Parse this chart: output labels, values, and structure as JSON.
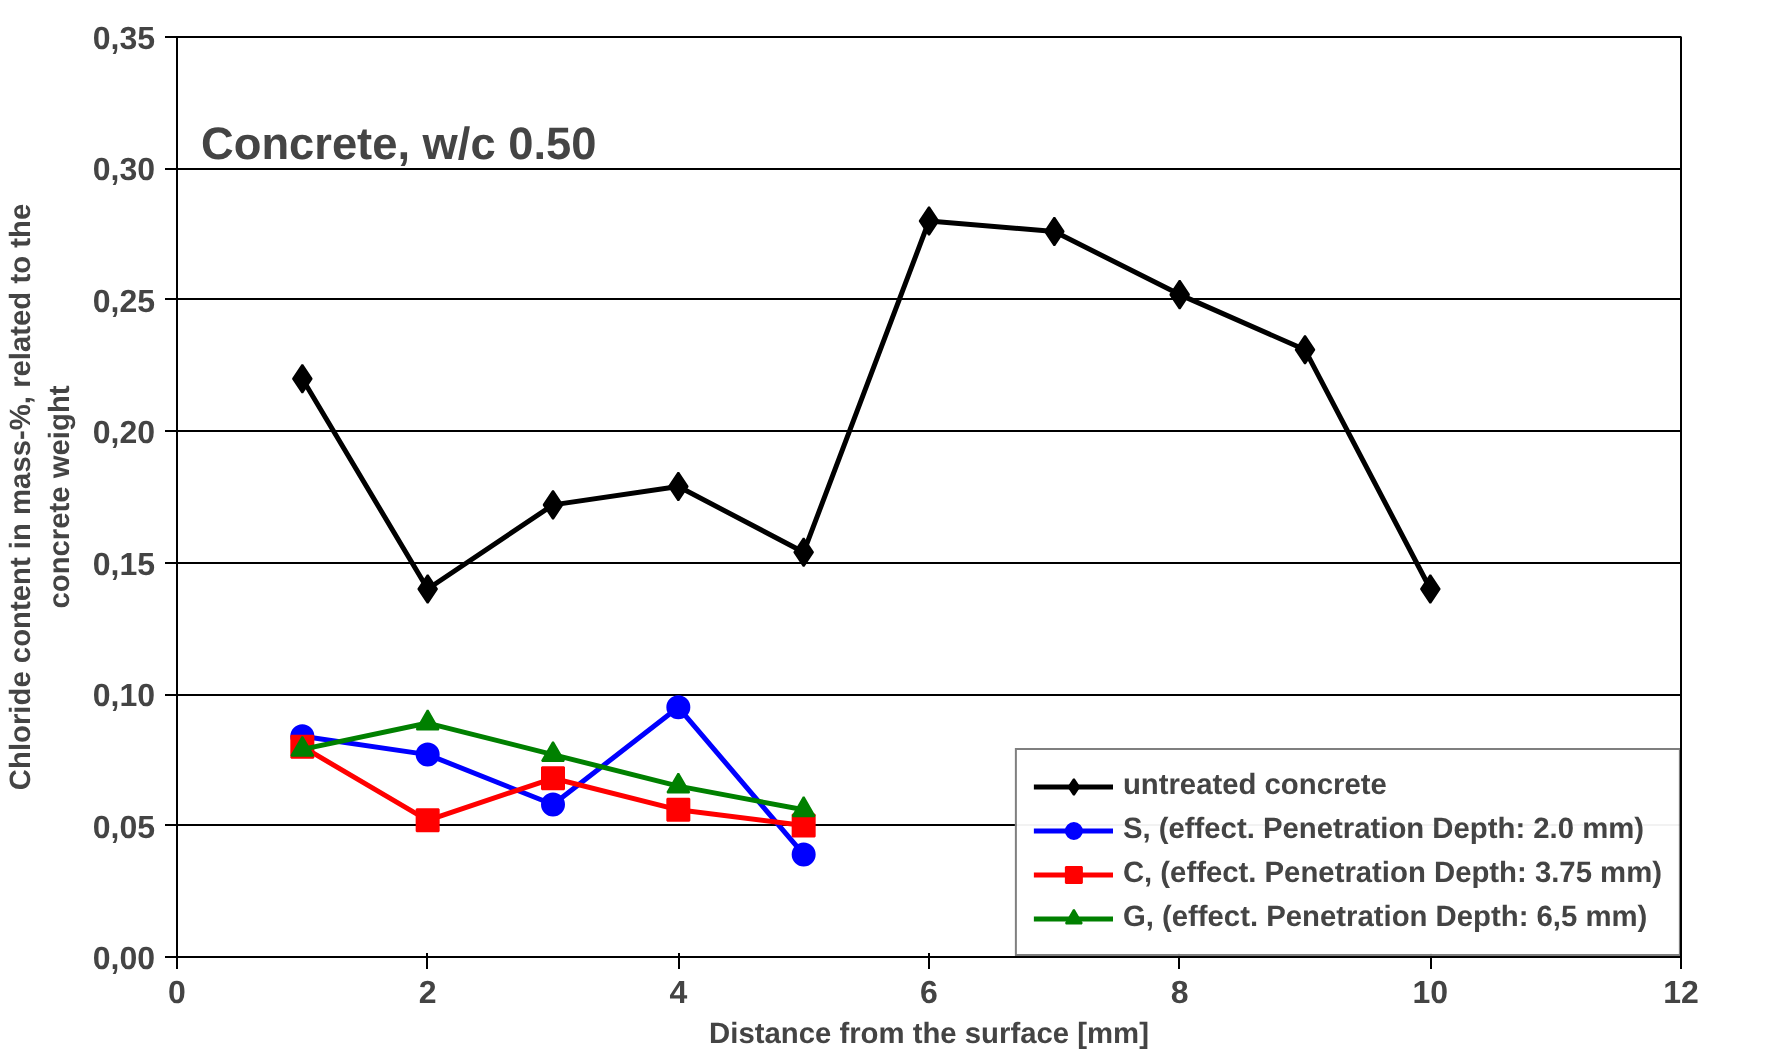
{
  "chart_data": {
    "type": "line",
    "title": "Concrete, w/c 0.50",
    "xlabel": "Distance from the surface [mm]",
    "ylabel": "Chloride content in mass-%, related to the\nconcrete weight",
    "series": [
      {
        "name": "untreated concrete",
        "color": "#000000",
        "marker": "diamond",
        "x": [
          1,
          2,
          3,
          4,
          5,
          6,
          7,
          8,
          9,
          10
        ],
        "values": [
          0.22,
          0.14,
          0.172,
          0.179,
          0.154,
          0.28,
          0.276,
          0.252,
          0.231,
          0.14
        ]
      },
      {
        "name": "S, (effect. Penetration Depth: 2.0 mm)",
        "color": "#0000ff",
        "marker": "circle",
        "x": [
          1,
          2,
          3,
          4,
          5
        ],
        "values": [
          0.084,
          0.077,
          0.058,
          0.095,
          0.039
        ]
      },
      {
        "name": "C, (effect. Penetration Depth: 3.75 mm)",
        "color": "#ff0000",
        "marker": "square",
        "x": [
          1,
          2,
          3,
          4,
          5
        ],
        "values": [
          0.08,
          0.052,
          0.068,
          0.056,
          0.05
        ]
      },
      {
        "name": "G, (effect. Penetration Depth: 6,5 mm)",
        "color": "#008000",
        "marker": "triangle",
        "x": [
          1,
          2,
          3,
          4,
          5
        ],
        "values": [
          0.079,
          0.089,
          0.077,
          0.065,
          0.056
        ]
      }
    ],
    "xlim": [
      0,
      12
    ],
    "xticks": [
      0,
      2,
      4,
      6,
      8,
      10,
      12
    ],
    "ylim": [
      0,
      0.35
    ],
    "yticks": [
      {
        "value": 0,
        "label": "0,00"
      },
      {
        "value": 0.05,
        "label": "0,05"
      },
      {
        "value": 0.1,
        "label": "0,10"
      },
      {
        "value": 0.15,
        "label": "0,15"
      },
      {
        "value": 0.2,
        "label": "0,20"
      },
      {
        "value": 0.25,
        "label": "0,25"
      },
      {
        "value": 0.3,
        "label": "0,30"
      },
      {
        "value": 0.35,
        "label": "0,35"
      }
    ],
    "grid": "y",
    "legend": "bottom right",
    "line_style": "solid"
  }
}
